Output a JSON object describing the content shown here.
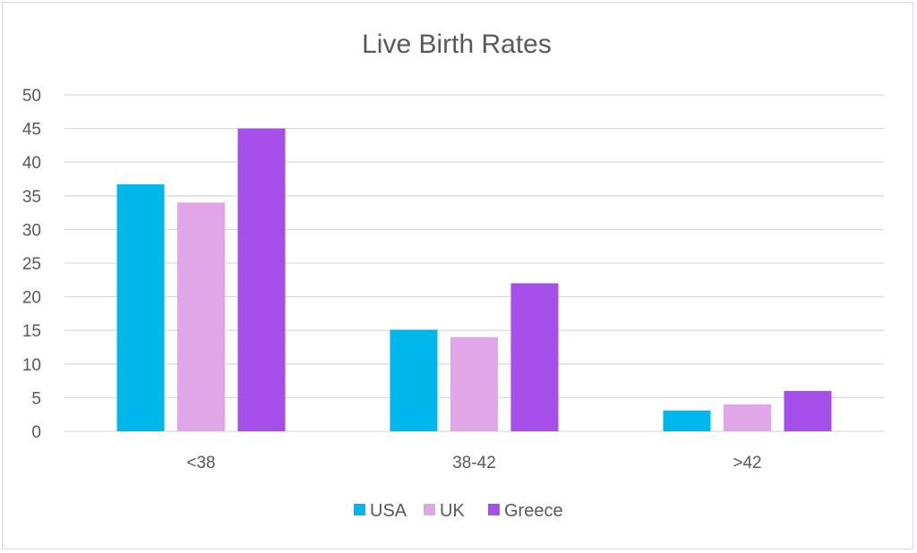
{
  "chart_data": {
    "type": "bar",
    "title": "Live Birth Rates",
    "xlabel": "",
    "ylabel": "",
    "categories": [
      "<38",
      "38-42",
      ">42"
    ],
    "series": [
      {
        "name": "USA",
        "color": "#00b7eb",
        "values": [
          36.7,
          15.1,
          3.1
        ]
      },
      {
        "name": "UK",
        "color": "#e0a6e8",
        "values": [
          34,
          14,
          4
        ]
      },
      {
        "name": "Greece",
        "color": "#a64eea",
        "values": [
          45,
          22,
          6
        ]
      }
    ],
    "ylim": [
      0,
      50
    ],
    "yticks": [
      "0",
      "5",
      "10",
      "15",
      "20",
      "25",
      "30",
      "35",
      "40",
      "45",
      "50"
    ],
    "grid": true,
    "legend": "bottom"
  }
}
